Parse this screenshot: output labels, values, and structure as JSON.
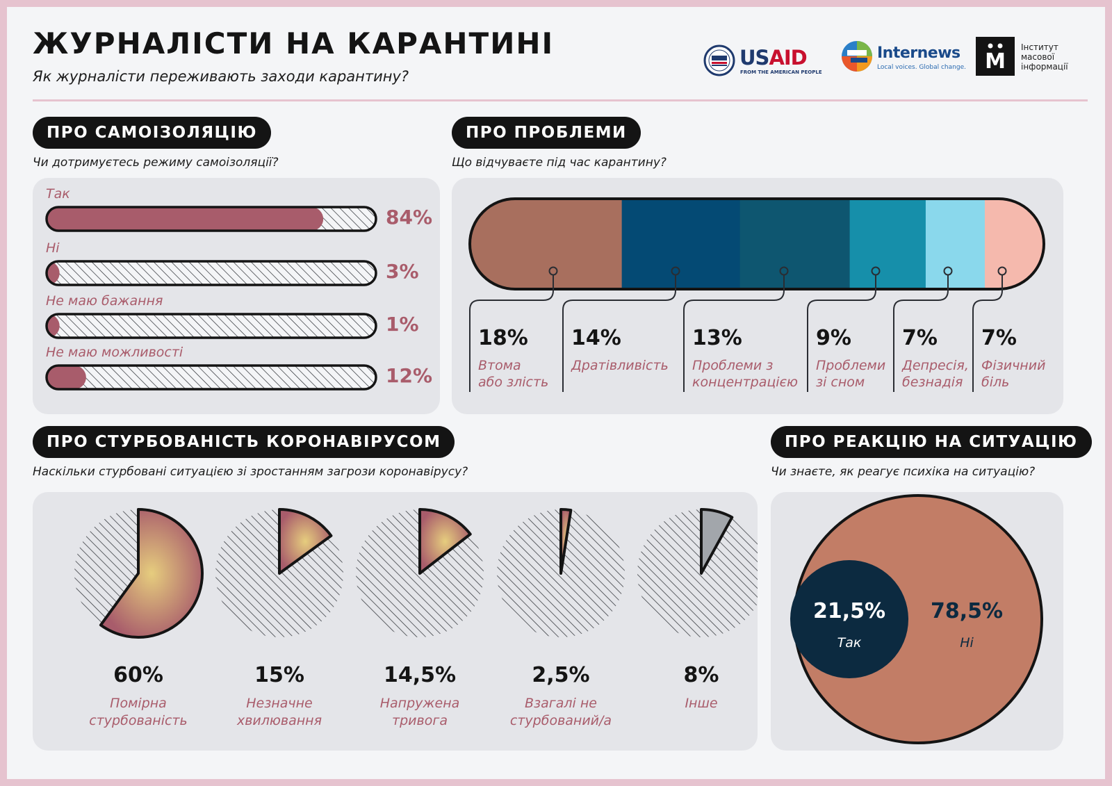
{
  "header": {
    "title": "ЖУРНАЛІСТИ НА КАРАНТИНІ",
    "subtitle": "Як журналісти переживають заходи карантину?"
  },
  "logos": {
    "usaid": {
      "name_u": "US",
      "name_aid": "AID",
      "tagline": "FROM THE AMERICAN PEOPLE"
    },
    "internews": {
      "name": "Internews",
      "tagline": "Local voices. Global change."
    },
    "imi": {
      "letter": "М",
      "line1": "Інститут",
      "line2": "масової",
      "line3": "інформації"
    }
  },
  "sections": {
    "isolation": {
      "title": "ПРО САМОІЗОЛЯЦІЮ",
      "question": "Чи дотримуєтесь режиму самоізоляції?"
    },
    "problems": {
      "title": "ПРО ПРОБЛЕМИ",
      "question": "Що відчуваєте під час карантину?"
    },
    "concern": {
      "title": "ПРО СТУРБОВАНІСТЬ КОРОНАВІРУСОМ",
      "question": "Наскільки стурбовані ситуацією зі зростанням загрози коронавірусу?"
    },
    "reaction": {
      "title": "ПРО РЕАКЦІЮ НА СИТУАЦІЮ",
      "question": "Чи знаєте, як реагує психіка на ситуацію?"
    }
  },
  "colors": {
    "bar_fill": "#a85c6b",
    "accent_text": "#a95c6b",
    "dark": "#141414",
    "strip": [
      "#a86f5e",
      "#044a74",
      "#0e5670",
      "#168faa",
      "#8ad8ec",
      "#f5b9ad"
    ],
    "reaction_no": "#c27d66",
    "reaction_yes": "#0c2a40",
    "pie_other": "#a2a6ab"
  },
  "chart_data": [
    {
      "type": "bar",
      "categories": [
        "Так",
        "Ні",
        "Не маю бажання",
        "Не маю можливості"
      ],
      "values": [
        84,
        3,
        1,
        12
      ],
      "value_labels": [
        "84%",
        "3%",
        "1%",
        "12%"
      ],
      "ylim": [
        0,
        100
      ]
    },
    {
      "type": "bar",
      "stacked": true,
      "categories": [
        "Втома або злість",
        "Дратівливість",
        "Проблеми з концентрацією",
        "Проблеми зі сном",
        "Депресія, безнадія",
        "Фізичний біль"
      ],
      "label_lines": [
        [
          "Втома",
          "або злість"
        ],
        [
          "Дратівливість"
        ],
        [
          "Проблеми з",
          "концентрацією"
        ],
        [
          "Проблеми",
          "зі сном"
        ],
        [
          "Депресія,",
          "безнадія"
        ],
        [
          "Фізичний",
          "біль"
        ]
      ],
      "values": [
        18,
        14,
        13,
        9,
        7,
        7
      ],
      "value_labels": [
        "18%",
        "14%",
        "13%",
        "9%",
        "7%",
        "7%"
      ]
    },
    {
      "type": "pie",
      "categories": [
        "Помірна стурбованість",
        "Незначне хвилювання",
        "Напружена тривога",
        "Взагалі не стурбований/а",
        "Інше"
      ],
      "label_lines": [
        [
          "Помірна",
          "стурбованість"
        ],
        [
          "Незначне",
          "хвилювання"
        ],
        [
          "Напружена",
          "тривога"
        ],
        [
          "Взагалі не",
          "стурбований/а"
        ],
        [
          "Інше"
        ]
      ],
      "values": [
        60,
        15,
        14.5,
        2.5,
        8
      ],
      "value_labels": [
        "60%",
        "15%",
        "14,5%",
        "2,5%",
        "8%"
      ]
    },
    {
      "type": "pie",
      "categories": [
        "Так",
        "Ні"
      ],
      "values": [
        21.5,
        78.5
      ],
      "value_labels": [
        "21,5%",
        "78,5%"
      ]
    }
  ]
}
